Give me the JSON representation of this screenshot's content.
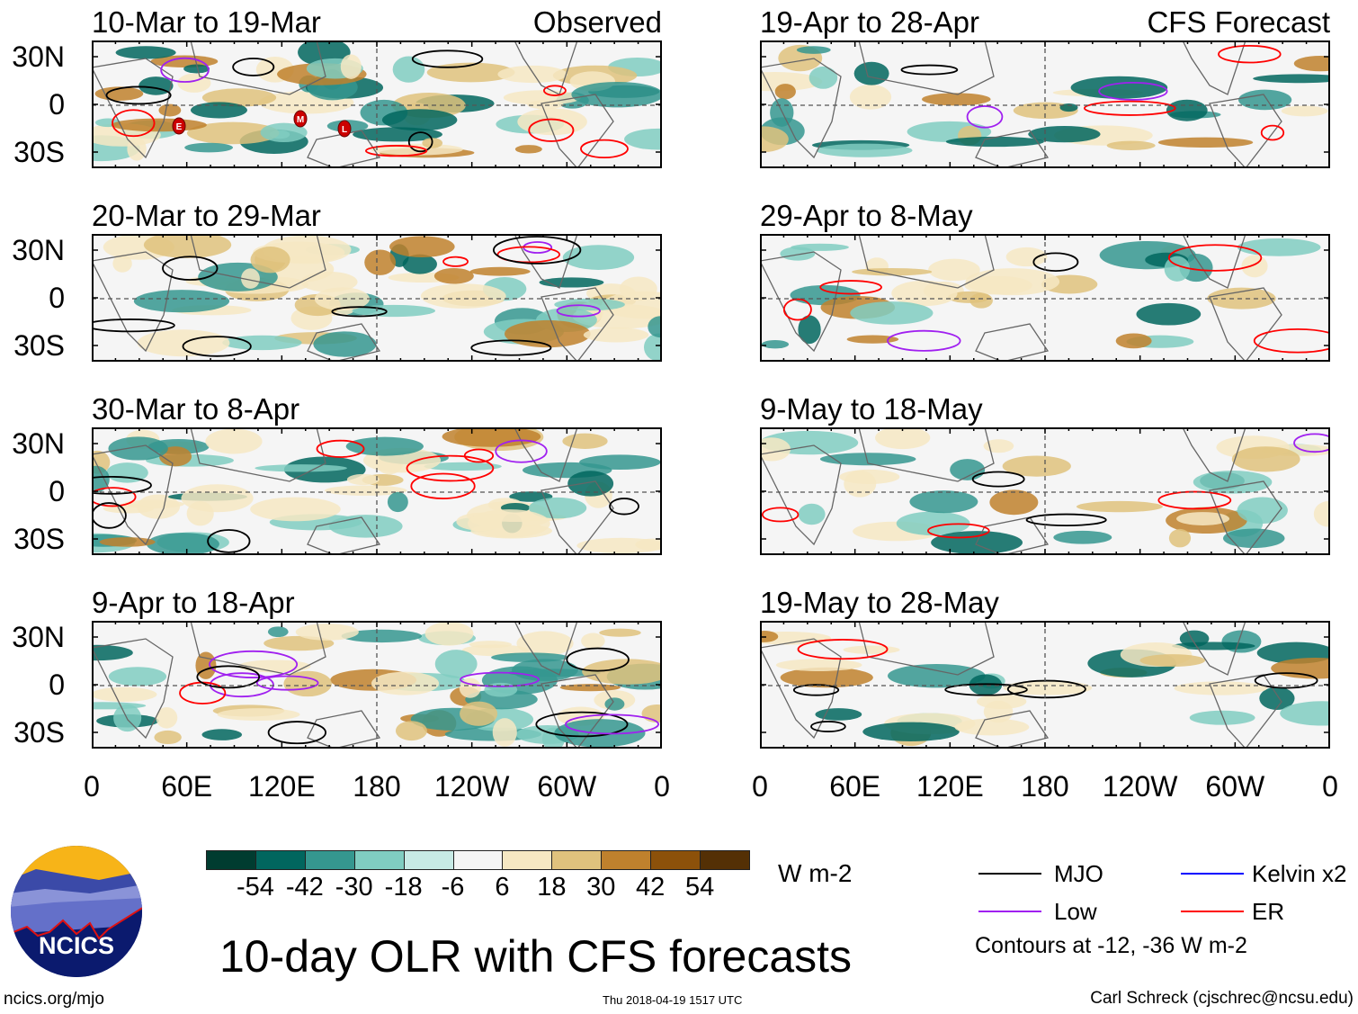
{
  "panels": {
    "observed": [
      {
        "title": "10-Mar to 19-Mar",
        "tag": "Observed",
        "storms": [
          "E",
          "M",
          "L"
        ]
      },
      {
        "title": "20-Mar to 29-Mar"
      },
      {
        "title": "30-Mar to 8-Apr"
      },
      {
        "title": "9-Apr to 18-Apr"
      }
    ],
    "forecast": [
      {
        "title": "19-Apr to 28-Apr",
        "tag": "CFS Forecast"
      },
      {
        "title": "29-Apr to 8-May"
      },
      {
        "title": "9-May to 18-May"
      },
      {
        "title": "19-May to 28-May"
      }
    ]
  },
  "lat_labels": [
    "30N",
    "0",
    "30S"
  ],
  "lon_labels": [
    "0",
    "60E",
    "120E",
    "180",
    "120W",
    "60W",
    "0"
  ],
  "chart_data": {
    "type": "heatmap",
    "title": "10-day OLR with CFS forecasts",
    "variable": "OLR anomaly",
    "units": "W m-2",
    "colorbar": {
      "levels": [
        -54,
        -42,
        -30,
        -18,
        -6,
        6,
        18,
        30,
        42,
        54
      ],
      "labels": [
        "-54",
        "-42",
        "-30",
        "-18",
        "-6",
        "6",
        "18",
        "30",
        "42",
        "54"
      ],
      "colors": [
        "#003c30",
        "#01665e",
        "#35978f",
        "#80cdc1",
        "#c7eae5",
        "#f5f5f5",
        "#f6e8c3",
        "#dfc27d",
        "#bf812d",
        "#8c510a",
        "#543005"
      ]
    },
    "lat_range": [
      "30S",
      "30N"
    ],
    "lon_range": [
      0,
      360
    ],
    "legend": {
      "items": [
        {
          "label": "MJO",
          "color": "#000000"
        },
        {
          "label": "Kelvin x2",
          "color": "#0000ff"
        },
        {
          "label": "Low",
          "color": "#a020f0"
        },
        {
          "label": "ER",
          "color": "#ff0000"
        }
      ],
      "note": "Contours at -12, -36 W m-2"
    }
  },
  "footer": {
    "logo_text": "NCICS",
    "url": "ncics.org/mjo",
    "timestamp": "Thu 2018-04-19 1517 UTC",
    "credit": "Carl Schreck (cjschrec@ncsu.edu)"
  }
}
